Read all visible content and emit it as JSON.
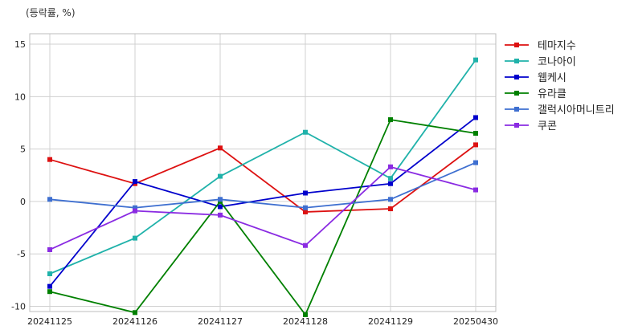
{
  "chart_data": {
    "type": "line",
    "unit_label": "(등락률, %)",
    "categories": [
      "20241125",
      "20241126",
      "20241127",
      "20241128",
      "20241129",
      "20250430"
    ],
    "ylim": [
      -10.5,
      16
    ],
    "yticks": [
      -10,
      -5,
      0,
      5,
      10,
      15
    ],
    "grid": true,
    "legend_position": "right",
    "series": [
      {
        "name": "테마지수",
        "color": "#dd1111",
        "values": [
          4.0,
          1.7,
          5.1,
          -1.0,
          -0.7,
          5.4
        ]
      },
      {
        "name": "코나아이",
        "color": "#20b2aa",
        "values": [
          -6.9,
          -3.5,
          2.4,
          6.6,
          2.2,
          13.5
        ]
      },
      {
        "name": "웹케시",
        "color": "#0000cc",
        "values": [
          -8.1,
          1.9,
          -0.5,
          0.8,
          1.7,
          8.0
        ]
      },
      {
        "name": "유라클",
        "color": "#008000",
        "values": [
          -8.6,
          -10.6,
          0.0,
          -10.8,
          7.8,
          6.5
        ]
      },
      {
        "name": "갤럭시아머니트리",
        "color": "#3e6fd0",
        "values": [
          0.2,
          -0.6,
          0.2,
          -0.6,
          0.2,
          3.7
        ]
      },
      {
        "name": "쿠콘",
        "color": "#8a2be2",
        "values": [
          -4.6,
          -0.9,
          -1.3,
          -4.2,
          3.3,
          1.1
        ]
      }
    ]
  }
}
